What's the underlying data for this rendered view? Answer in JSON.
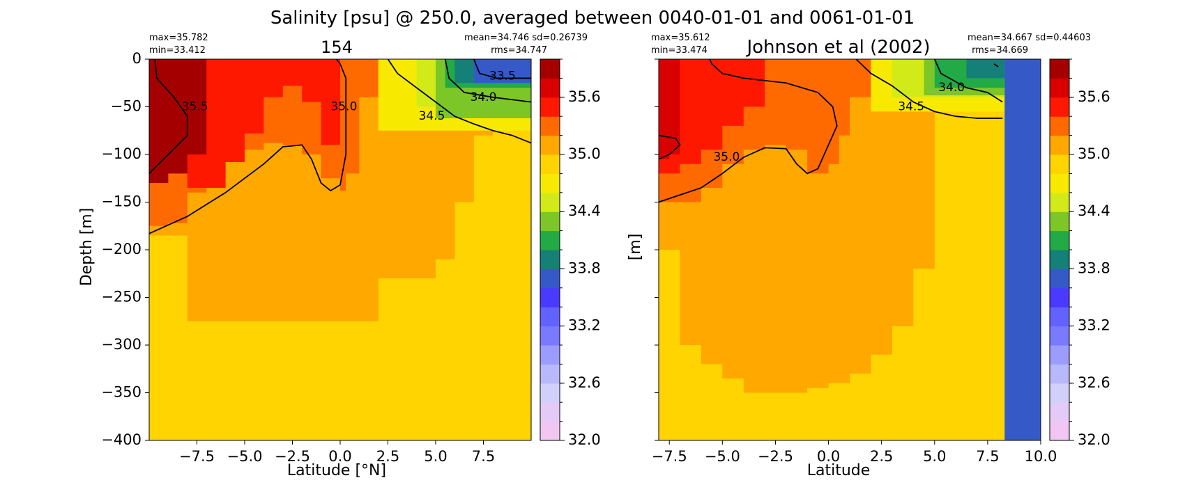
{
  "figure_title": "Salinity [psu] @ 250.0, averaged between 0040-01-01 and 0061-01-01",
  "colorbar": {
    "levels": [
      32.0,
      32.2,
      32.4,
      32.6,
      32.8,
      33.0,
      33.2,
      33.4,
      33.6,
      33.8,
      34.0,
      34.2,
      34.4,
      34.6,
      34.8,
      35.0,
      35.2,
      35.4,
      35.6,
      35.8,
      36.0
    ],
    "colors": [
      "#f2c6f2",
      "#e4caf6",
      "#d1d0fa",
      "#b8b8fc",
      "#9c9cfc",
      "#7a7aff",
      "#6262ff",
      "#4a3aff",
      "#3559c7",
      "#158078",
      "#22aa46",
      "#7cc628",
      "#d2ea18",
      "#f7ea00",
      "#ffd400",
      "#ffa800",
      "#ff6a00",
      "#ff1800",
      "#d90000",
      "#a40000",
      "#6c0000"
    ],
    "ticks": [
      32.0,
      32.6,
      33.2,
      33.8,
      34.4,
      35.0,
      35.6
    ],
    "tick_labels": [
      "32.0",
      "32.6",
      "33.2",
      "33.8",
      "34.4",
      "35.0",
      "35.6"
    ]
  },
  "panels": [
    {
      "title": "154",
      "stats": {
        "max": "max=35.782",
        "min": "min=33.412",
        "mean_sd": "mean=34.746 sd=0.26739",
        "rms": "rms=34.747"
      },
      "ylabel": "Depth [m]",
      "xlabel": "Latitude [°N]"
    },
    {
      "title": "Johnson et al (2002)",
      "stats": {
        "max": "max=35.612",
        "min": "min=33.474",
        "mean_sd": "mean=34.667 sd=0.44603",
        "rms": "rms=34.669"
      },
      "ylabel": "[m]",
      "xlabel": "Latitude"
    }
  ],
  "chart_data": [
    {
      "type": "heatmap",
      "title": "154",
      "xlabel": "Latitude [°N]",
      "ylabel": "Depth [m]",
      "xlim": [
        -10,
        10
      ],
      "ylim": [
        -400,
        0
      ],
      "xticks": [
        -7.5,
        -5.0,
        -2.5,
        0.0,
        2.5,
        5.0,
        7.5
      ],
      "xtick_labels": [
        "−7.5",
        "−5.0",
        "−2.5",
        "0.0",
        "2.5",
        "5.0",
        "7.5"
      ],
      "yticks": [
        0,
        -50,
        -100,
        -150,
        -200,
        -250,
        -300,
        -350,
        -400
      ],
      "ytick_labels": [
        "0",
        "−50",
        "−100",
        "−150",
        "−200",
        "−250",
        "−300",
        "−350",
        "−400"
      ],
      "fill_color": "#ffd400",
      "regions": [
        {
          "value": 34.9,
          "color": "#ffa800",
          "lats": [
            -10,
            -9,
            -8,
            -7,
            -6,
            -5,
            -4,
            -3,
            -2,
            -1,
            0,
            1,
            2,
            3,
            4,
            5,
            6,
            7,
            8,
            9,
            10
          ],
          "bottom": [
            -185,
            -185,
            -275,
            -275,
            -275,
            -275,
            -275,
            -275,
            -275,
            -275,
            -275,
            -275,
            -230,
            -230,
            -230,
            -210,
            -150,
            -80,
            -70,
            -65,
            -60
          ]
        },
        {
          "value": 35.1,
          "color": "#ff6a00",
          "lats": [
            -10,
            -9,
            -8,
            -7,
            -6,
            -5,
            -4,
            -3,
            -2,
            -1,
            0,
            0.3,
            1,
            3,
            4,
            4.5,
            5
          ],
          "bottom": [
            -175,
            -172,
            -140,
            -128,
            -108,
            -95,
            -88,
            -90,
            -100,
            -125,
            -138,
            -120,
            -40,
            -10,
            -5,
            -2,
            0
          ]
        },
        {
          "value": 35.3,
          "color": "#ff1800",
          "lats": [
            -10,
            -8,
            -6,
            -5,
            -4,
            -3,
            -2,
            -1,
            0
          ],
          "bottom": [
            -120,
            -135,
            -108,
            -78,
            -40,
            -28,
            -45,
            -90,
            -80
          ]
        },
        {
          "value": 35.7,
          "color": "#a40000",
          "lats": [
            -10,
            -9,
            -8,
            -7
          ],
          "bottom": [
            -130,
            -120,
            -100,
            -60
          ]
        }
      ],
      "fresh_patches": [
        {
          "value": 34.5,
          "color": "#f7ea00",
          "lat_range": [
            2,
            10
          ],
          "depth_range": [
            0,
            -75
          ]
        },
        {
          "value": 34.3,
          "color": "#d2ea18",
          "lat_range": [
            4,
            10
          ],
          "depth_range": [
            0,
            -50
          ]
        },
        {
          "value": 34.1,
          "color": "#7cc628",
          "lat_range": [
            5,
            10
          ],
          "depth_range": [
            0,
            -62
          ]
        },
        {
          "value": 33.9,
          "color": "#22aa46",
          "lat_range": [
            5.5,
            10
          ],
          "depth_range": [
            0,
            -30
          ]
        },
        {
          "value": 33.8,
          "color": "#158078",
          "lat_range": [
            6,
            8
          ],
          "depth_range": [
            0,
            -25
          ]
        },
        {
          "value": 33.5,
          "color": "#3559c7",
          "lat_range": [
            7,
            10
          ],
          "depth_range": [
            0,
            -25
          ]
        }
      ],
      "contours": [
        {
          "level": "35.5",
          "label_lat": -7.6,
          "label_depth": -50,
          "points": [
            [
              -9.7,
              0
            ],
            [
              -9.6,
              -20
            ],
            [
              -8.7,
              -40
            ],
            [
              -8.0,
              -60
            ],
            [
              -8.0,
              -80
            ],
            [
              -9.0,
              -100
            ],
            [
              -10,
              -120
            ]
          ]
        },
        {
          "level": "35.0",
          "label_lat": 0.2,
          "label_depth": -50,
          "points": [
            [
              -10,
              -183
            ],
            [
              -8,
              -165
            ],
            [
              -6,
              -140
            ],
            [
              -4,
              -110
            ],
            [
              -3,
              -92
            ],
            [
              -2,
              -90
            ],
            [
              -1.5,
              -105
            ],
            [
              -1,
              -130
            ],
            [
              -0.5,
              -138
            ],
            [
              0,
              -132
            ],
            [
              0.3,
              -100
            ],
            [
              0.3,
              -50
            ],
            [
              0.3,
              -20
            ],
            [
              0,
              -5
            ],
            [
              -0.2,
              0
            ]
          ]
        },
        {
          "level": "34.5",
          "label_lat": 4.8,
          "label_depth": -60,
          "points": [
            [
              2.5,
              0
            ],
            [
              3,
              -15
            ],
            [
              4,
              -30
            ],
            [
              5,
              -45
            ],
            [
              6,
              -60
            ],
            [
              7,
              -68
            ],
            [
              8,
              -75
            ],
            [
              9,
              -80
            ],
            [
              10,
              -88
            ]
          ]
        },
        {
          "level": "34.0",
          "label_lat": 7.5,
          "label_depth": -40,
          "points": [
            [
              5.5,
              0
            ],
            [
              5.7,
              -20
            ],
            [
              6.5,
              -35
            ],
            [
              8,
              -40
            ],
            [
              10,
              -45
            ]
          ]
        },
        {
          "level": "33.5",
          "label_lat": 8.5,
          "label_depth": -18,
          "points": [
            [
              7.0,
              0
            ],
            [
              7.3,
              -15
            ],
            [
              8.2,
              -20
            ],
            [
              10,
              -20
            ]
          ]
        }
      ]
    },
    {
      "type": "heatmap",
      "title": "Johnson et al (2002)",
      "xlabel": "Latitude",
      "ylabel": "[m]",
      "xlim": [
        -8,
        10
      ],
      "ylim": [
        -400,
        0
      ],
      "xticks": [
        -7.5,
        -5.0,
        -2.5,
        0.0,
        2.5,
        5.0,
        7.5,
        10.0
      ],
      "xtick_labels": [
        "−7.5",
        "−5.0",
        "−2.5",
        "0.0",
        "2.5",
        "5.0",
        "7.5",
        "10.0"
      ],
      "yticks": [
        0,
        -50,
        -100,
        -150,
        -200,
        -250,
        -300,
        -350,
        -400
      ],
      "fill_color": "#ffd400",
      "nodata_range": [
        8.3,
        10
      ],
      "nodata_color": "#3559c7",
      "regions": [
        {
          "value": 34.9,
          "color": "#ffa800",
          "lats": [
            -8,
            -7,
            -6,
            -5,
            -4,
            -3,
            -2,
            -1,
            0,
            1,
            2,
            3,
            4,
            5
          ],
          "bottom": [
            -200,
            -300,
            -320,
            -335,
            -350,
            -350,
            -350,
            -345,
            -340,
            -330,
            -310,
            -280,
            -220,
            -120
          ]
        },
        {
          "value": 35.1,
          "color": "#ff6a00",
          "lats": [
            -8,
            -6,
            -5,
            -4,
            -3,
            -2,
            -1,
            0,
            0.5,
            1,
            2,
            3
          ],
          "bottom": [
            -150,
            -135,
            -110,
            -95,
            -90,
            -95,
            -120,
            -110,
            -80,
            -40,
            -5,
            0
          ]
        },
        {
          "value": 35.3,
          "color": "#ff1800",
          "lats": [
            -8,
            -7,
            -6,
            -5,
            -4,
            -3
          ],
          "bottom": [
            -120,
            -110,
            -95,
            -70,
            -50,
            -40
          ]
        },
        {
          "value": 35.5,
          "color": "#d90000",
          "lats": [
            -8,
            -7.5,
            -7
          ],
          "bottom": [
            -105,
            -100,
            -90
          ]
        }
      ],
      "fresh_patches": [
        {
          "value": 34.5,
          "color": "#f7ea00",
          "lat_range": [
            2.0,
            8.3
          ],
          "depth_range": [
            0,
            -55
          ]
        },
        {
          "value": 34.3,
          "color": "#d2ea18",
          "lat_range": [
            3.0,
            8.3
          ],
          "depth_range": [
            0,
            -40
          ]
        },
        {
          "value": 34.1,
          "color": "#7cc628",
          "lat_range": [
            4.5,
            8.3
          ],
          "depth_range": [
            0,
            -38
          ]
        },
        {
          "value": 33.9,
          "color": "#22aa46",
          "lat_range": [
            5.0,
            8.3
          ],
          "depth_range": [
            0,
            -30
          ]
        },
        {
          "value": 33.8,
          "color": "#158078",
          "lat_range": [
            6.5,
            8.3
          ],
          "depth_range": [
            0,
            -20
          ]
        }
      ],
      "contours": [
        {
          "level": "35.0",
          "label_lat": -4.8,
          "label_depth": -103,
          "points": [
            [
              -8,
              -150
            ],
            [
              -6,
              -135
            ],
            [
              -5,
              -120
            ],
            [
              -4,
              -103
            ],
            [
              -3,
              -93
            ],
            [
              -2,
              -94
            ],
            [
              -1.5,
              -110
            ],
            [
              -1,
              -120
            ],
            [
              -0.5,
              -115
            ],
            [
              0,
              -90
            ],
            [
              0.4,
              -70
            ],
            [
              0.2,
              -50
            ],
            [
              -0.5,
              -35
            ],
            [
              -2,
              -25
            ],
            [
              -4,
              -20
            ],
            [
              -5,
              -15
            ],
            [
              -5.5,
              -5
            ],
            [
              -5.6,
              0
            ]
          ]
        },
        {
          "level": "34.5",
          "label_lat": 3.9,
          "label_depth": -50,
          "points": [
            [
              1.3,
              0
            ],
            [
              2,
              -15
            ],
            [
              3,
              -28
            ],
            [
              4,
              -45
            ],
            [
              5,
              -55
            ],
            [
              6,
              -60
            ],
            [
              7,
              -62
            ],
            [
              8.2,
              -62
            ]
          ]
        },
        {
          "level": "34.0",
          "label_lat": 5.8,
          "label_depth": -30,
          "points": [
            [
              5.0,
              0
            ],
            [
              5.3,
              -15
            ],
            [
              6.5,
              -30
            ],
            [
              7.5,
              -35
            ],
            [
              8.2,
              -45
            ]
          ]
        },
        {
          "level": "",
          "points": [
            [
              -8,
              -80
            ],
            [
              -7.2,
              -83
            ],
            [
              -7,
              -90
            ],
            [
              -7.5,
              -100
            ],
            [
              -8,
              -105
            ]
          ]
        },
        {
          "level": "",
          "points": [
            [
              7.8,
              -5
            ],
            [
              8.0,
              -8
            ]
          ]
        }
      ]
    }
  ]
}
